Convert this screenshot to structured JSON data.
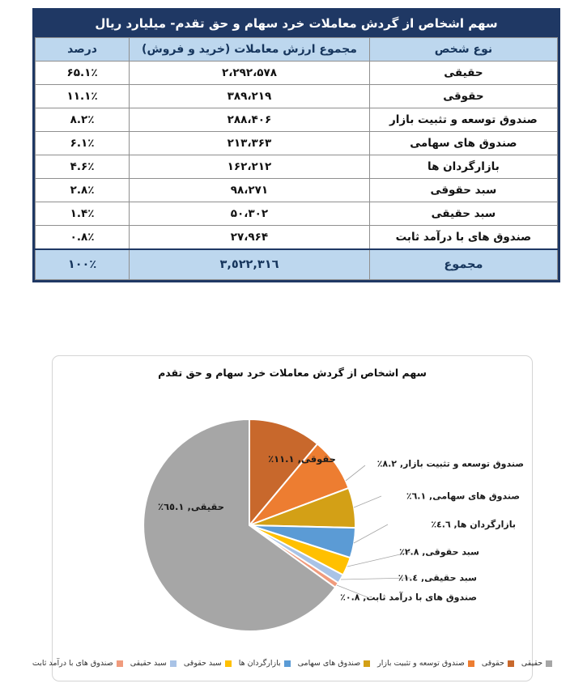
{
  "table": {
    "title": "سهم اشخاص از گردش معاملات خرد سهام و حق تقدم- میلیارد ریال",
    "columns": {
      "type": "نوع شخص",
      "value": "مجموع ارزش معاملات (خرید و فروش)",
      "percent": "درصد"
    },
    "rows": [
      {
        "type": "حقیقی",
        "value": "۲،۲۹۲،۵۷۸",
        "percent": "۶۵.۱٪"
      },
      {
        "type": "حقوقی",
        "value": "۳۸۹،۲۱۹",
        "percent": "۱۱.۱٪"
      },
      {
        "type": "صندوق توسعه و تثبیت بازار",
        "value": "۲۸۸،۴۰۶",
        "percent": "۸.۲٪"
      },
      {
        "type": "صندوق های سهامی",
        "value": "۲۱۳،۳۶۳",
        "percent": "۶.۱٪"
      },
      {
        "type": "بازارگردان ها",
        "value": "۱۶۲،۲۱۲",
        "percent": "۴.۶٪"
      },
      {
        "type": "سبد حقوقی",
        "value": "۹۸،۲۷۱",
        "percent": "۲.۸٪"
      },
      {
        "type": "سبد حقیقی",
        "value": "۵۰،۳۰۲",
        "percent": "۱.۴٪"
      },
      {
        "type": "صندوق های با درآمد ثابت",
        "value": "۲۷،۹۶۴",
        "percent": "۰.۸٪"
      }
    ],
    "total": {
      "type": "مجموع",
      "value": "٣,٥٢٢,٣١٦",
      "percent": "۱۰۰٪"
    },
    "colors": {
      "title_bg": "#1F3864",
      "header_bg": "#BDD7EE",
      "total_bg": "#BDD7EE"
    }
  },
  "chart_data": {
    "type": "pie",
    "title": "سهم اشخاص از گردش معاملات خرد سهام و حق تقدم",
    "direction": "clockwise",
    "start_angle_deg": 0,
    "legend_position": "bottom",
    "slices": [
      {
        "label": "حقوقی",
        "value": 11.1,
        "color": "#C8682C",
        "display": "حقوقی, ١١.١٪",
        "label_placement": "inside"
      },
      {
        "label": "صندوق توسعه و تثبیت بازار",
        "value": 8.2,
        "color": "#ED7D31",
        "display": "صندوق توسعه و تثبیت بازار, ٨.٢٪",
        "label_placement": "outside"
      },
      {
        "label": "صندوق های سهامی",
        "value": 6.1,
        "color": "#D3A016",
        "display": "صندوق های سهامی, ٦.١٪",
        "label_placement": "outside"
      },
      {
        "label": "بازارگردان ها",
        "value": 4.6,
        "color": "#5B9BD5",
        "display": "بازارگردان ها, ٤.٦٪",
        "label_placement": "outside"
      },
      {
        "label": "سبد حقوقی",
        "value": 2.8,
        "color": "#FFC000",
        "display": "سبد حقوقی, ٢.٨٪",
        "label_placement": "outside"
      },
      {
        "label": "سبد حقیقی",
        "value": 1.4,
        "color": "#A9C3E6",
        "display": "سبد حقیقی, ١.٤٪",
        "label_placement": "outside"
      },
      {
        "label": "صندوق های با درآمد ثابت",
        "value": 0.8,
        "color": "#F09B7D",
        "display": "صندوق های با درآمد ثابت, ٠.٨٪",
        "label_placement": "outside"
      },
      {
        "label": "حقیقی",
        "value": 65.1,
        "color": "#A6A6A6",
        "display": "حقیقی, ٦٥.١٪",
        "label_placement": "inside"
      }
    ],
    "legend_order": [
      "حقیقی",
      "حقوقی",
      "صندوق توسعه و تثبیت بازار",
      "صندوق های سهامی",
      "بازارگردان ها",
      "سبد حقوقی",
      "سبد حقیقی",
      "صندوق های با درآمد ثابت"
    ]
  }
}
